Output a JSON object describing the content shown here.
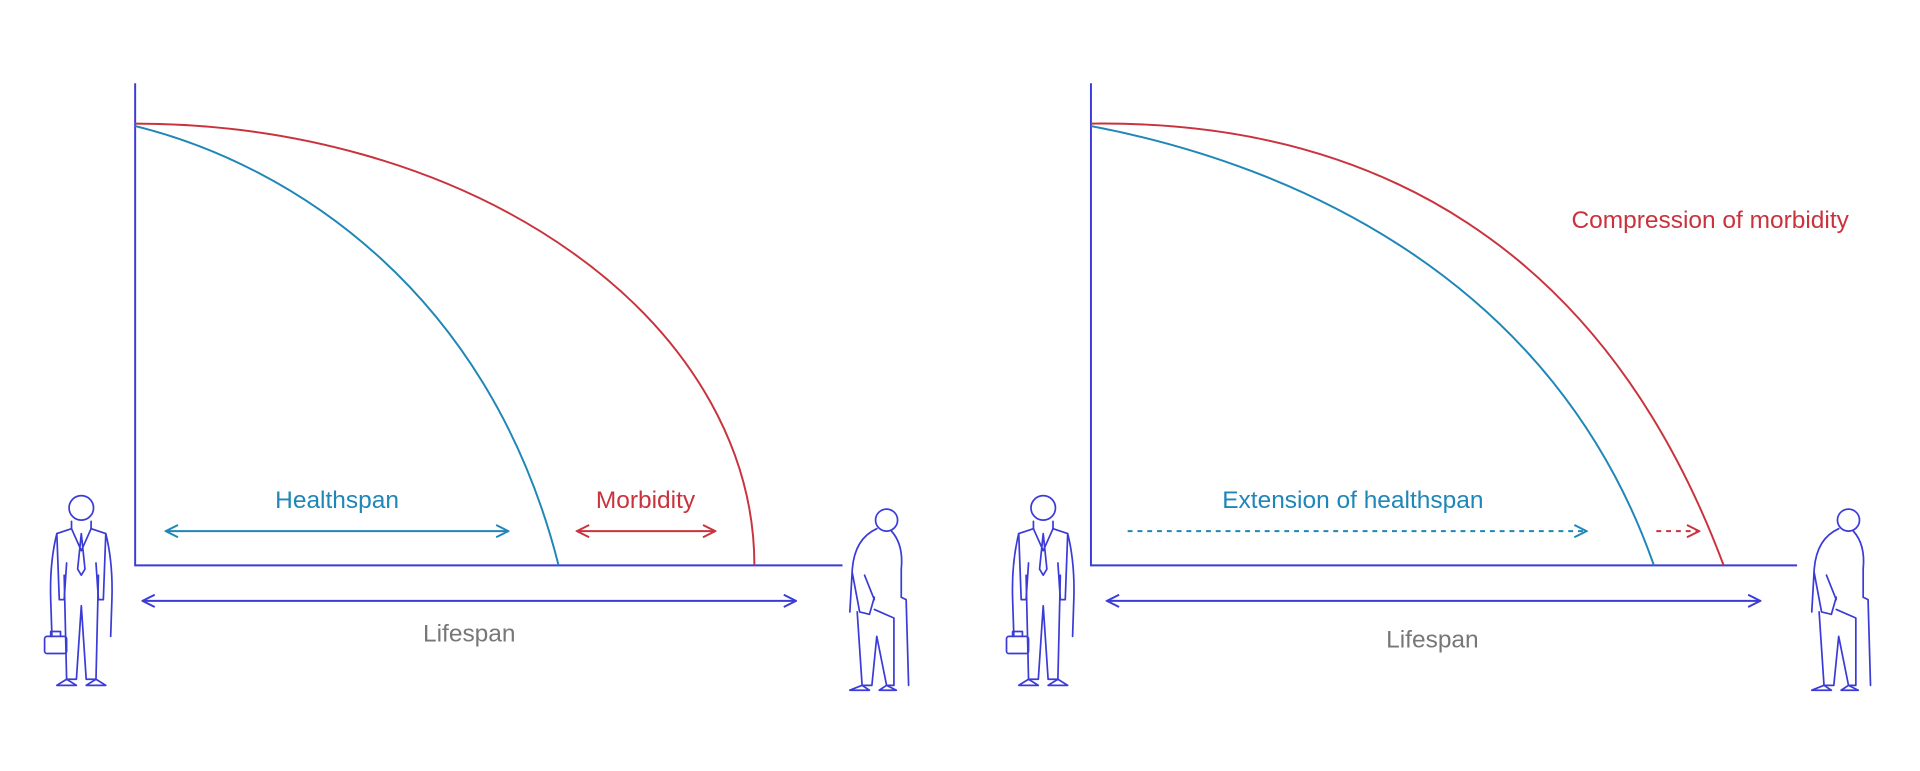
{
  "panels": [
    {
      "labels": {
        "healthspan": "Healthspan",
        "morbidity": "Morbidity",
        "lifespan": "Lifespan"
      }
    },
    {
      "labels": {
        "healthspan": "Extension of healthspan",
        "morbidity": "Compression of morbidity",
        "lifespan": "Lifespan"
      }
    }
  ]
}
